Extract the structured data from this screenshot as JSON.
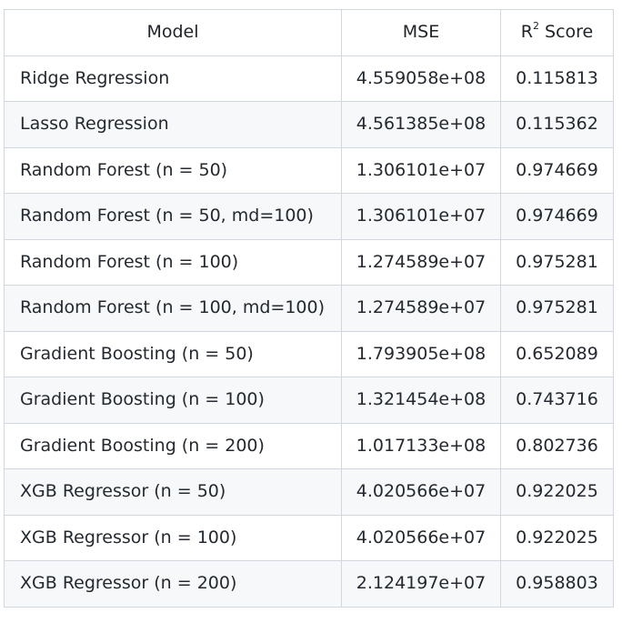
{
  "table": {
    "headers": {
      "model": "Model",
      "mse": "MSE",
      "r2_base": "R",
      "r2_sup": "2",
      "r2_rest": " Score"
    },
    "rows": [
      {
        "model": "Ridge Regression",
        "mse": "4.559058e+08",
        "r2": "0.115813"
      },
      {
        "model": "Lasso Regression",
        "mse": "4.561385e+08",
        "r2": "0.115362"
      },
      {
        "model": "Random Forest (n = 50)",
        "mse": "1.306101e+07",
        "r2": "0.974669"
      },
      {
        "model": "Random Forest (n = 50, md=100)",
        "mse": "1.306101e+07",
        "r2": "0.974669"
      },
      {
        "model": "Random Forest (n = 100)",
        "mse": "1.274589e+07",
        "r2": "0.975281"
      },
      {
        "model": "Random Forest (n = 100, md=100)",
        "mse": "1.274589e+07",
        "r2": "0.975281"
      },
      {
        "model": "Gradient Boosting (n = 50)",
        "mse": "1.793905e+08",
        "r2": "0.652089"
      },
      {
        "model": "Gradient Boosting (n = 100)",
        "mse": "1.321454e+08",
        "r2": "0.743716"
      },
      {
        "model": "Gradient Boosting (n = 200)",
        "mse": "1.017133e+08",
        "r2": "0.802736"
      },
      {
        "model": "XGB Regressor (n = 50)",
        "mse": "4.020566e+07",
        "r2": "0.922025"
      },
      {
        "model": "XGB Regressor (n = 100)",
        "mse": "4.020566e+07",
        "r2": "0.922025"
      },
      {
        "model": "XGB Regressor (n = 200)",
        "mse": "2.124197e+07",
        "r2": "0.958803"
      }
    ]
  }
}
